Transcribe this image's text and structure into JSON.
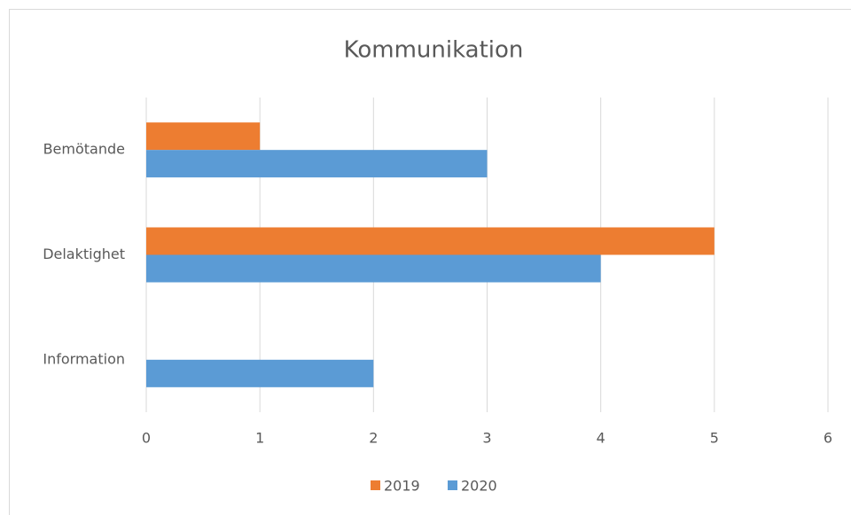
{
  "chart_data": {
    "type": "barh",
    "title": "Kommunikation",
    "categories": [
      "Bemötande",
      "Delaktighet",
      "Information"
    ],
    "series": [
      {
        "name": "2019",
        "color": "#ed7d31",
        "values": [
          1,
          5,
          0
        ]
      },
      {
        "name": "2020",
        "color": "#5b9bd5",
        "values": [
          3,
          4,
          2
        ]
      }
    ],
    "xlim": [
      0,
      6
    ],
    "xticks": [
      0,
      1,
      2,
      3,
      4,
      5,
      6
    ],
    "grid": true,
    "legend": "bottom"
  }
}
